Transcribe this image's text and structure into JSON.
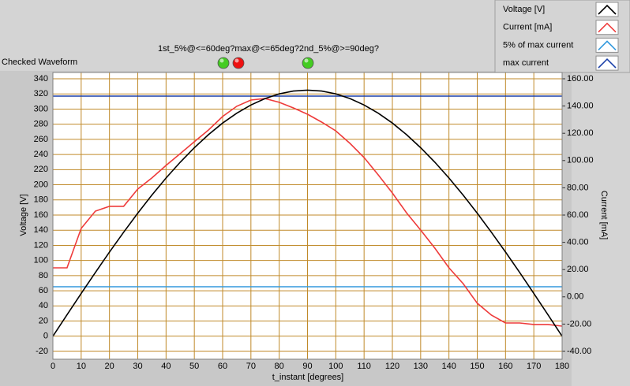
{
  "chart_data": {
    "type": "line",
    "title": "Checked Waveform",
    "subtitle": "1st_5%@<=60deg?max@<=65deg?2nd_5%@>=90deg?",
    "indicators": [
      {
        "color": "#44cc22"
      },
      {
        "color": "#ee1111"
      },
      {
        "color": "#44cc22"
      }
    ],
    "x_label": "t_instant [degrees]",
    "y_label": "Voltage [V]",
    "y2_label": "Current [mA]",
    "x": [
      0,
      5,
      10,
      15,
      20,
      25,
      30,
      35,
      40,
      45,
      50,
      55,
      60,
      65,
      70,
      75,
      80,
      85,
      90,
      95,
      100,
      105,
      110,
      115,
      120,
      125,
      130,
      135,
      140,
      145,
      150,
      155,
      160,
      165,
      170,
      175,
      180
    ],
    "series": [
      {
        "name": "Voltage [V]",
        "color": "#000000",
        "values": [
          0,
          28.3,
          56.4,
          84.1,
          111.2,
          137.3,
          162.5,
          186.4,
          208.9,
          229.8,
          249.0,
          266.2,
          281.5,
          294.5,
          305.4,
          313.9,
          320.1,
          323.8,
          325,
          323.8,
          320.1,
          313.9,
          305.4,
          294.5,
          281.5,
          266.2,
          249.0,
          229.8,
          208.9,
          186.4,
          162.5,
          137.3,
          111.2,
          84.1,
          56.4,
          28.3,
          0
        ]
      },
      {
        "name": "Current [mA]",
        "color": "#ee3b3b",
        "axis": "y2",
        "values": [
          21.3,
          21.3,
          50.2,
          62.9,
          66.4,
          66.4,
          79.1,
          87.2,
          96.4,
          105.1,
          113.8,
          122.4,
          132.3,
          139.8,
          144.4,
          145.5,
          142.7,
          138.6,
          134,
          128.2,
          121.8,
          112.6,
          102.2,
          89.5,
          76.2,
          61.7,
          49,
          35.7,
          21.3,
          9.7,
          -4.7,
          -13.4,
          -19.2,
          -19.2,
          -20.3,
          -20.3,
          -21.5
        ]
      },
      {
        "name": "5% of max current",
        "color": "#3399dd",
        "axis": "y2",
        "x": [
          0,
          180
        ],
        "values": [
          7.4,
          7.4
        ]
      },
      {
        "name": "max current",
        "color": "#1a3fa8",
        "axis": "y2",
        "x": [
          0,
          180
        ],
        "values": [
          147.3,
          147.3
        ]
      }
    ],
    "xlim": [
      0,
      180
    ],
    "xticks": [
      0,
      10,
      20,
      30,
      40,
      50,
      60,
      70,
      80,
      90,
      100,
      110,
      120,
      130,
      140,
      150,
      160,
      170,
      180
    ],
    "ylim": [
      -20,
      340
    ],
    "yticks": [
      -20,
      0,
      20,
      40,
      60,
      80,
      100,
      120,
      140,
      160,
      180,
      200,
      220,
      240,
      260,
      280,
      300,
      320,
      340
    ],
    "y2lim": [
      -40,
      160
    ],
    "y2ticks": [
      {
        "value": -40,
        "label": "-40.00"
      },
      {
        "value": -20,
        "label": "-20.00"
      },
      {
        "value": 0,
        "label": "0.00"
      },
      {
        "value": 20,
        "label": "20.00"
      },
      {
        "value": 40,
        "label": "40.00"
      },
      {
        "value": 60,
        "label": "60.00"
      },
      {
        "value": 80,
        "label": "80.00"
      },
      {
        "value": 100,
        "label": "100.00"
      },
      {
        "value": 120,
        "label": "120.00"
      },
      {
        "value": 140,
        "label": "140.00"
      },
      {
        "value": 160,
        "label": "160.00"
      }
    ],
    "grid": true,
    "grid_color": "#c08a2a",
    "legend": "top-right"
  }
}
